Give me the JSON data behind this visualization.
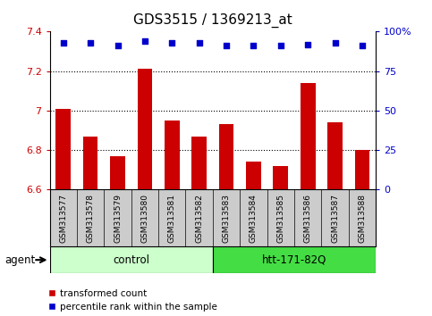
{
  "title": "GDS3515 / 1369213_at",
  "categories": [
    "GSM313577",
    "GSM313578",
    "GSM313579",
    "GSM313580",
    "GSM313581",
    "GSM313582",
    "GSM313583",
    "GSM313584",
    "GSM313585",
    "GSM313586",
    "GSM313587",
    "GSM313588"
  ],
  "bar_values": [
    7.01,
    6.87,
    6.77,
    7.21,
    6.95,
    6.87,
    6.93,
    6.74,
    6.72,
    7.14,
    6.94,
    6.8
  ],
  "percentile_values": [
    93,
    93,
    91,
    94,
    93,
    93,
    91,
    91,
    91,
    92,
    93,
    91
  ],
  "ylim": [
    6.6,
    7.4
  ],
  "yticks": [
    6.6,
    6.8,
    7.0,
    7.2,
    7.4
  ],
  "right_yticks": [
    0,
    25,
    50,
    75,
    100
  ],
  "right_ylim": [
    0,
    100
  ],
  "bar_color": "#cc0000",
  "dot_color": "#0000cc",
  "bg_color": "#ffffff",
  "tick_area_bg": "#cccccc",
  "control_bg": "#ccffcc",
  "htt_bg": "#44dd44",
  "control_label": "control",
  "htt_label": "htt-171-82Q",
  "agent_label": "agent",
  "legend_bar_label": "transformed count",
  "legend_dot_label": "percentile rank within the sample",
  "control_samples": 6,
  "htt_samples": 6,
  "title_fontsize": 11,
  "tick_fontsize": 8,
  "label_fontsize": 8.5,
  "cat_fontsize": 6.5
}
